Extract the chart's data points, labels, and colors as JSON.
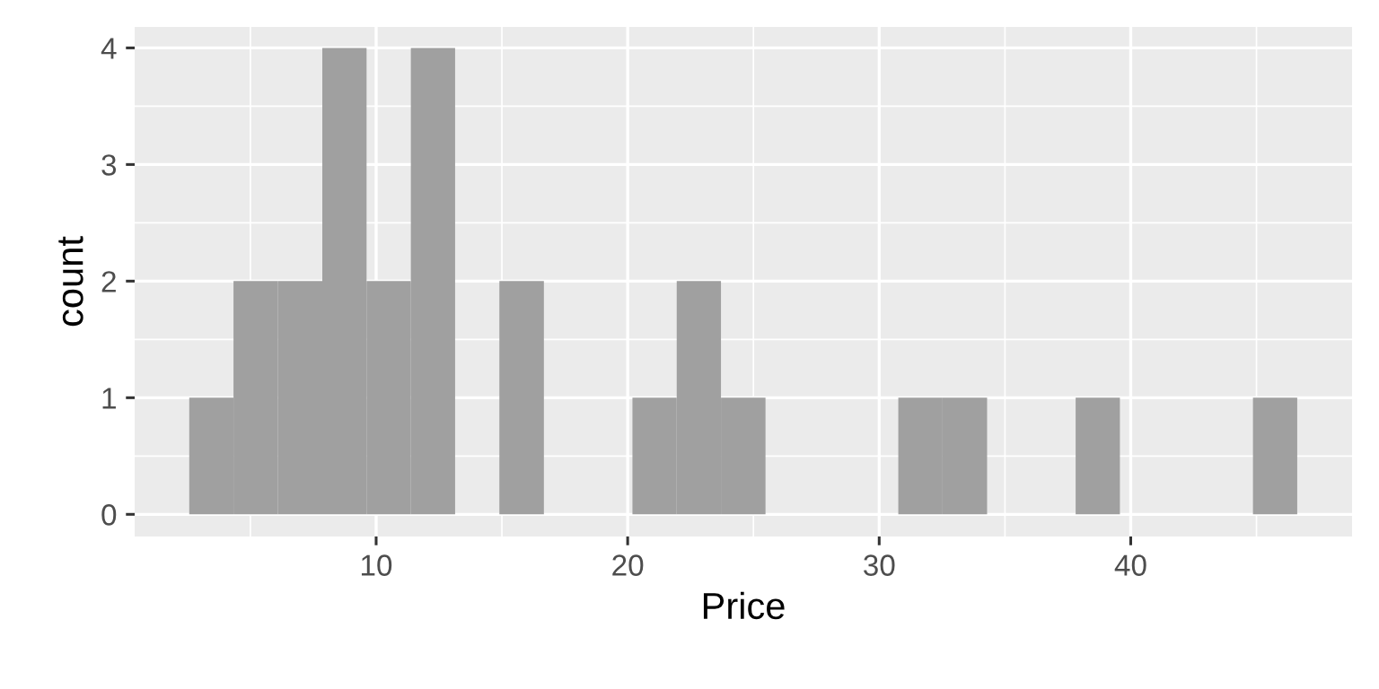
{
  "chart_data": {
    "type": "histogram",
    "xlabel": "Price",
    "ylabel": "count",
    "bins": [
      2.57,
      4.33,
      6.09,
      7.86,
      9.62,
      11.38,
      13.14,
      14.9,
      16.67,
      18.43,
      20.19,
      21.95,
      23.71,
      25.48,
      27.24,
      29.0,
      30.76,
      32.52,
      34.29,
      36.05,
      37.81,
      39.57,
      41.33,
      43.1,
      44.86,
      46.62
    ],
    "values": [
      1,
      2,
      2,
      4,
      2,
      4,
      0,
      2,
      0,
      0,
      1,
      2,
      1,
      0,
      0,
      0,
      1,
      1,
      0,
      0,
      1,
      0,
      0,
      0,
      1
    ],
    "color": "#a0a0a0",
    "xlim": [
      0.4,
      48.8
    ],
    "ylim": [
      -0.19,
      4.18
    ],
    "xticks": [
      10,
      20,
      30,
      40
    ],
    "yticks": [
      0,
      1,
      2,
      3,
      4
    ],
    "grid": true
  }
}
